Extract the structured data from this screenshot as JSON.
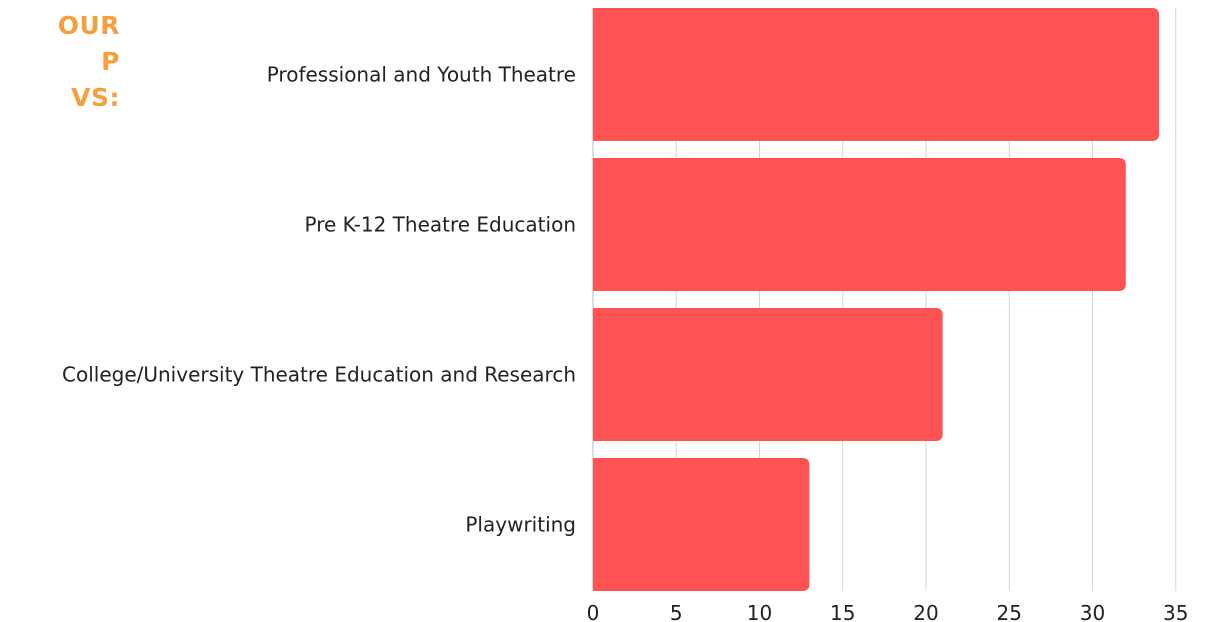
{
  "heading": {
    "lines": [
      "OUR",
      "P",
      "VS:"
    ],
    "color": "#f4a03f"
  },
  "chart_data": {
    "type": "bar",
    "orientation": "horizontal",
    "categories": [
      "Professional and Youth Theatre",
      "Pre K-12 Theatre Education",
      "College/University Theatre Education and Research",
      "Playwriting"
    ],
    "values": [
      34,
      32,
      21,
      13
    ],
    "xlim": [
      0,
      35
    ],
    "x_ticks": [
      0,
      5,
      10,
      15,
      20,
      25,
      30,
      35
    ],
    "grid": true,
    "bar_color": "#ff5252",
    "title": "",
    "xlabel": "",
    "ylabel": ""
  }
}
